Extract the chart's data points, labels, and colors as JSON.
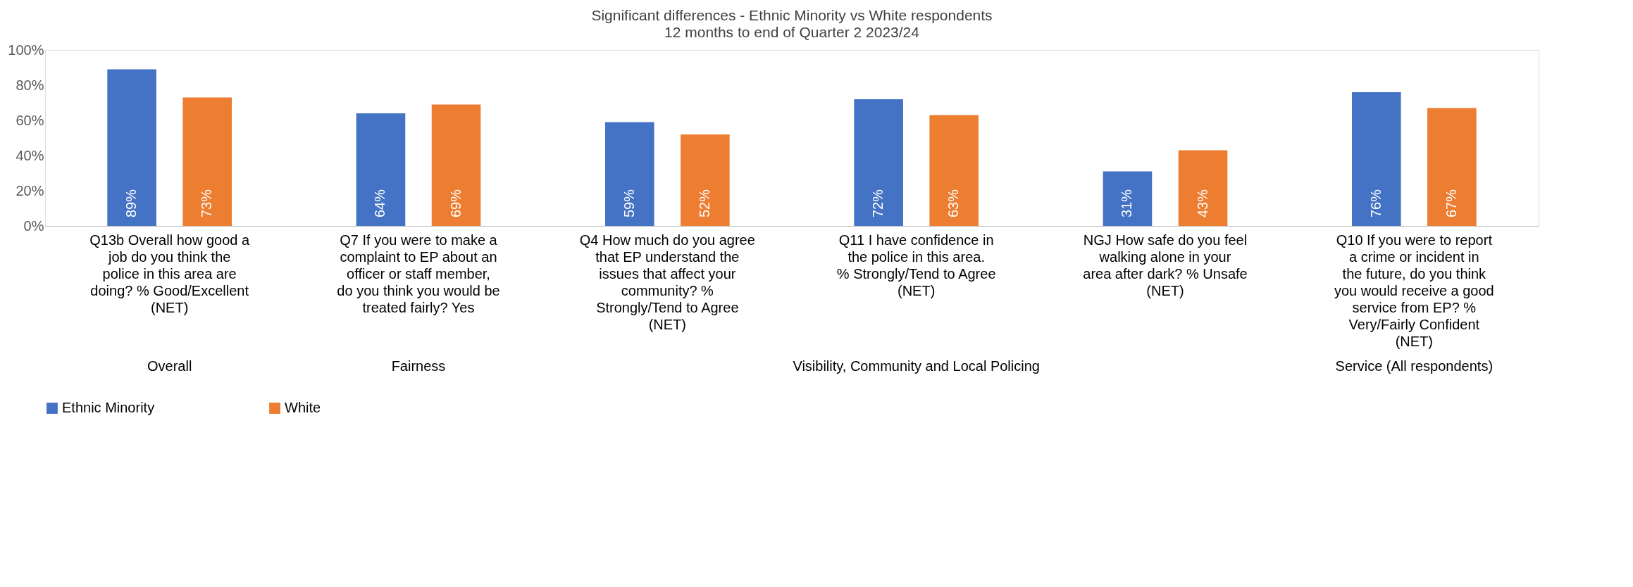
{
  "chart_data": {
    "type": "bar",
    "title": "Significant differences - Ethnic Minority vs White respondents",
    "subtitle": "12 months to end of Quarter 2 2023/24",
    "categories": [
      "Q13b Overall how good a job do you think the police in this area are doing? % Good/Excellent (NET)",
      "Q7 If you were to make a complaint to EP about an officer or staff member, do you think you would be treated fairly? Yes",
      "Q4 How much do you agree that EP understand the issues that affect your community? % Strongly/Tend to Agree (NET)",
      "Q11 I have confidence in the police in this area. % Strongly/Tend to Agree (NET)",
      "NGJ How safe do you feel walking alone in your area after dark? % Unsafe (NET)",
      "Q10 If you were to report a crime or incident in the future, do you think you would receive a good service from EP? % Very/Fairly Confident (NET)"
    ],
    "series": [
      {
        "name": "Ethnic Minority",
        "color": "#4472c4",
        "values": [
          89,
          64,
          59,
          72,
          31,
          76
        ],
        "value_labels": [
          "89%",
          "64%",
          "59%",
          "72%",
          "31%",
          "76%"
        ]
      },
      {
        "name": "White",
        "color": "#ed7d31",
        "values": [
          73,
          69,
          52,
          63,
          43,
          67
        ],
        "value_labels": [
          "73%",
          "69%",
          "52%",
          "63%",
          "43%",
          "67%"
        ]
      }
    ],
    "ylim": [
      0,
      100
    ],
    "yticks": [
      {
        "value": 0,
        "label": "0%"
      },
      {
        "value": 20,
        "label": "20%"
      },
      {
        "value": 40,
        "label": "40%"
      },
      {
        "value": 60,
        "label": "60%"
      },
      {
        "value": 80,
        "label": "80%"
      },
      {
        "value": 100,
        "label": "100%"
      }
    ],
    "annotations": [
      "Overall",
      "Fairness",
      "Visibility, Community and Local Policing",
      "Service (All respondents)"
    ],
    "grid": false,
    "legend": "bottom"
  }
}
